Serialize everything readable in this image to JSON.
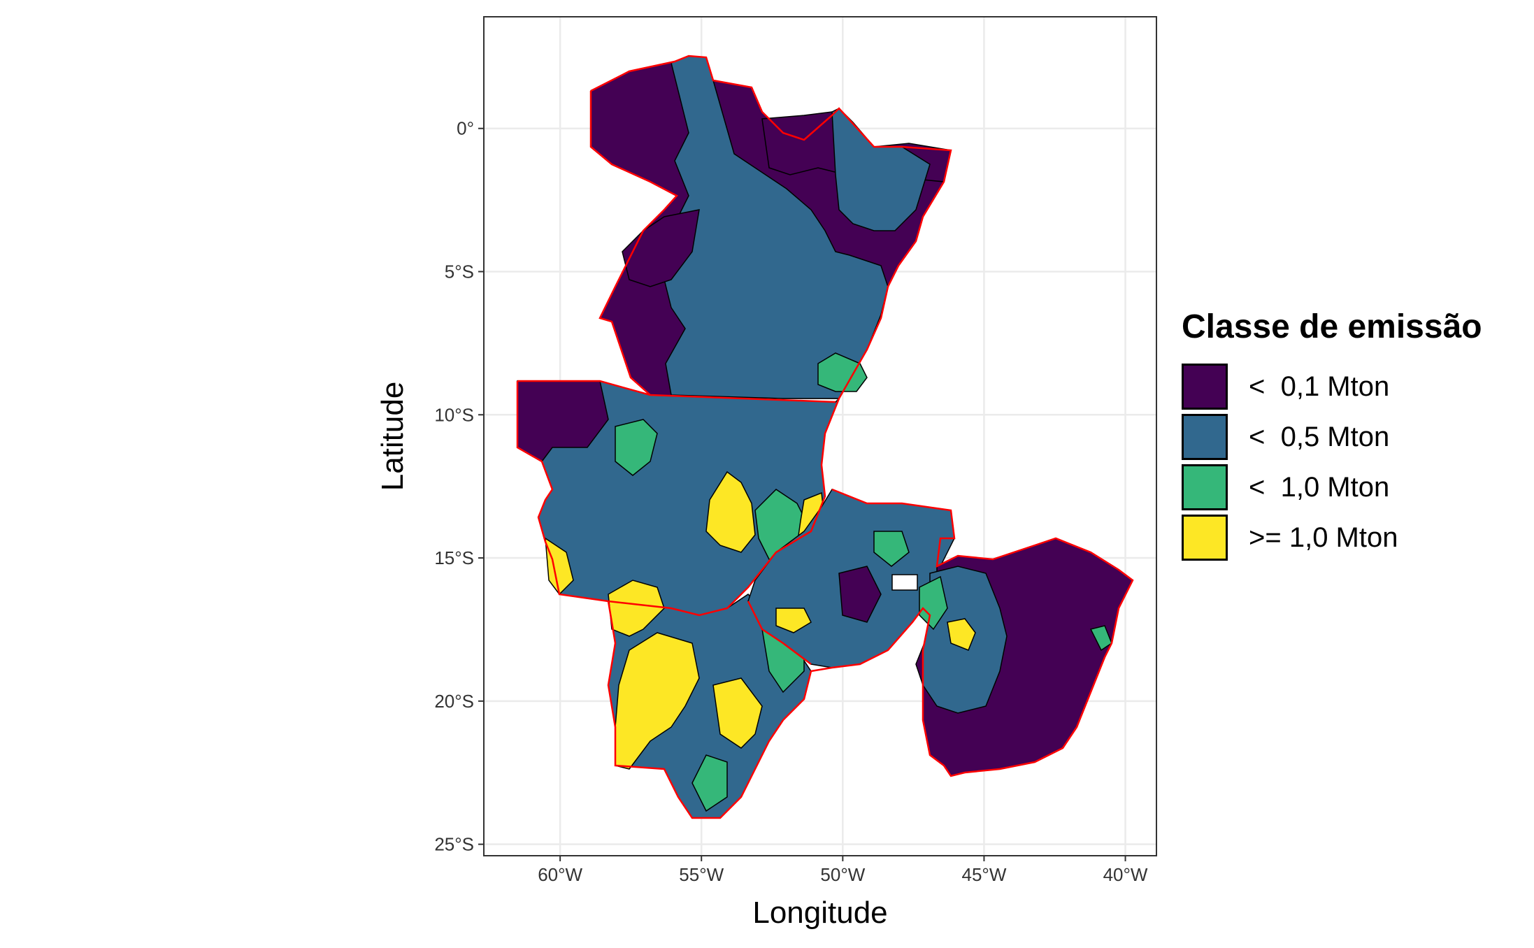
{
  "chart_data": {
    "type": "choropleth",
    "xlabel": "Longitude",
    "ylabel": "Latitude",
    "x_ticks": [
      "60°W",
      "55°W",
      "50°W",
      "45°W",
      "40°W"
    ],
    "y_ticks": [
      "0°",
      "5°S",
      "10°S",
      "15°S",
      "20°S",
      "25°S"
    ],
    "xlim": [
      -62.7,
      -38.9
    ],
    "ylim": [
      -25.4,
      3.9
    ],
    "grid": true,
    "legend_position": "right",
    "legend": {
      "title": "Classe de emissão",
      "entries": [
        {
          "label": "<  0,1 Mton",
          "color": "#440154"
        },
        {
          "label": "<  0,5 Mton",
          "color": "#31688E"
        },
        {
          "label": "<  1,0 Mton",
          "color": "#35B779"
        },
        {
          "label": ">= 1,0 Mton",
          "color": "#FDE725"
        }
      ]
    },
    "boundary_color": "#FF0000",
    "municipality_border_color": "#000000"
  }
}
